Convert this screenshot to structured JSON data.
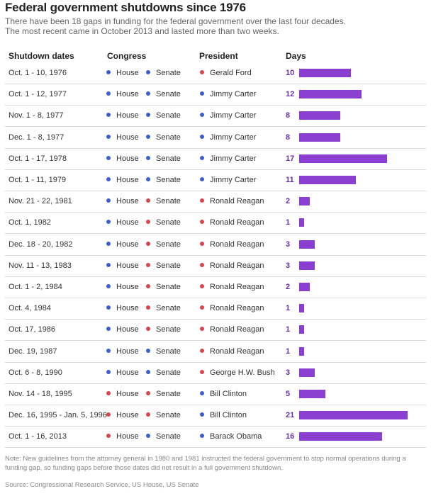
{
  "title": "Federal government shutdowns since 1976",
  "subtitle_line1": "There have been 18 gaps in funding for the federal government over the last four decades.",
  "subtitle_line2": "The most recent came in October 2013 and lasted more than two weeks.",
  "headers": {
    "dates": "Shutdown dates",
    "congress": "Congress",
    "president": "President",
    "days": "Days"
  },
  "house_label": "House",
  "senate_label": "Senate",
  "colors": {
    "democrat": "#3b5fcf",
    "republican": "#d9454d",
    "bar": "#8a3fd1",
    "days_text": "#6a2fb0"
  },
  "note": "Note: New guidelines from the attorney general in 1980 and 1981 instructed the federal government to stop normal operations during a funding gap, so funding gaps before those dates did not result in a full government shutdown.",
  "source": "Source: Congressional Research Service, US House, US Senate",
  "chart_data": {
    "type": "table",
    "title": "Federal government shutdowns since 1976",
    "columns": [
      "Shutdown dates",
      "Congress",
      "President",
      "Days"
    ],
    "rows": [
      {
        "dates": "Oct. 1 - 10, 1976",
        "house": "democrat",
        "senate": "democrat",
        "president": "Gerald Ford",
        "president_party": "republican",
        "days": 10
      },
      {
        "dates": "Oct. 1 - 12, 1977",
        "house": "democrat",
        "senate": "democrat",
        "president": "Jimmy Carter",
        "president_party": "democrat",
        "days": 12
      },
      {
        "dates": "Nov. 1 - 8, 1977",
        "house": "democrat",
        "senate": "democrat",
        "president": "Jimmy Carter",
        "president_party": "democrat",
        "days": 8
      },
      {
        "dates": "Dec. 1 - 8, 1977",
        "house": "democrat",
        "senate": "democrat",
        "president": "Jimmy Carter",
        "president_party": "democrat",
        "days": 8
      },
      {
        "dates": "Oct. 1 - 17, 1978",
        "house": "democrat",
        "senate": "democrat",
        "president": "Jimmy Carter",
        "president_party": "democrat",
        "days": 17
      },
      {
        "dates": "Oct. 1 - 11, 1979",
        "house": "democrat",
        "senate": "democrat",
        "president": "Jimmy Carter",
        "president_party": "democrat",
        "days": 11
      },
      {
        "dates": "Nov. 21 - 22, 1981",
        "house": "democrat",
        "senate": "republican",
        "president": "Ronald Reagan",
        "president_party": "republican",
        "days": 2
      },
      {
        "dates": "Oct. 1, 1982",
        "house": "democrat",
        "senate": "republican",
        "president": "Ronald Reagan",
        "president_party": "republican",
        "days": 1
      },
      {
        "dates": "Dec. 18 - 20, 1982",
        "house": "democrat",
        "senate": "republican",
        "president": "Ronald Reagan",
        "president_party": "republican",
        "days": 3
      },
      {
        "dates": "Nov. 11 - 13, 1983",
        "house": "democrat",
        "senate": "republican",
        "president": "Ronald Reagan",
        "president_party": "republican",
        "days": 3
      },
      {
        "dates": "Oct. 1 - 2, 1984",
        "house": "democrat",
        "senate": "republican",
        "president": "Ronald Reagan",
        "president_party": "republican",
        "days": 2
      },
      {
        "dates": "Oct. 4, 1984",
        "house": "democrat",
        "senate": "republican",
        "president": "Ronald Reagan",
        "president_party": "republican",
        "days": 1
      },
      {
        "dates": "Oct. 17, 1986",
        "house": "democrat",
        "senate": "republican",
        "president": "Ronald Reagan",
        "president_party": "republican",
        "days": 1
      },
      {
        "dates": "Dec. 19, 1987",
        "house": "democrat",
        "senate": "democrat",
        "president": "Ronald Reagan",
        "president_party": "republican",
        "days": 1
      },
      {
        "dates": "Oct. 6 - 8, 1990",
        "house": "democrat",
        "senate": "democrat",
        "president": "George H.W. Bush",
        "president_party": "republican",
        "days": 3
      },
      {
        "dates": "Nov. 14 - 18, 1995",
        "house": "republican",
        "senate": "republican",
        "president": "Bill Clinton",
        "president_party": "democrat",
        "days": 5
      },
      {
        "dates": "Dec. 16, 1995 - Jan. 5, 1996",
        "house": "republican",
        "senate": "republican",
        "president": "Bill Clinton",
        "president_party": "democrat",
        "days": 21
      },
      {
        "dates": "Oct. 1 - 16, 2013",
        "house": "republican",
        "senate": "democrat",
        "president": "Barack Obama",
        "president_party": "democrat",
        "days": 16
      }
    ]
  }
}
